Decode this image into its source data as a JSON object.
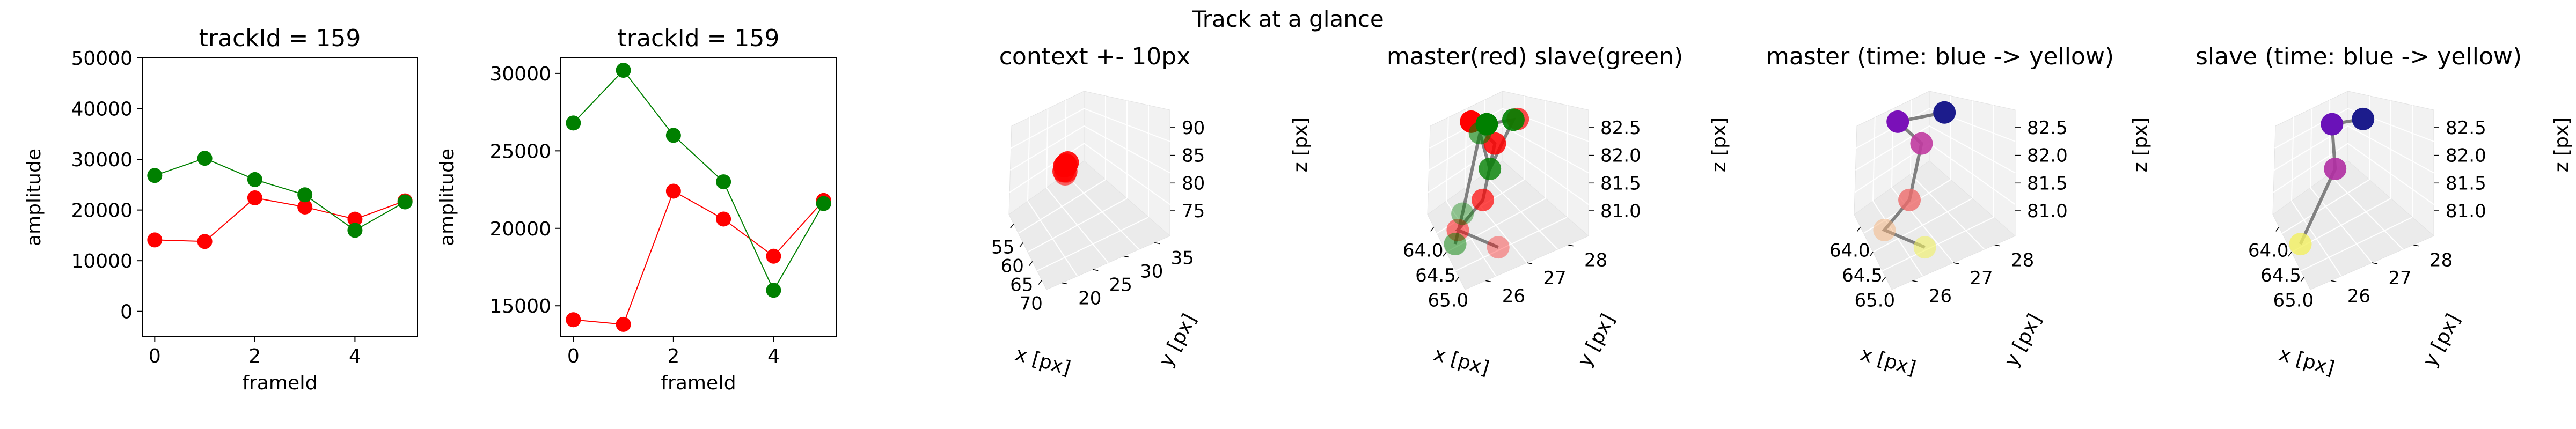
{
  "figure": {
    "suptitle": "Track at a glance"
  },
  "colors": {
    "master": "#ff0000",
    "slave": "#008000",
    "line3d": "#808080"
  },
  "chart_data": [
    {
      "type": "line",
      "title": "trackId = 159",
      "xlabel": "frameId",
      "ylabel": "amplitude",
      "xlim": [
        -0.25,
        5.25
      ],
      "ylim": [
        -5000,
        50000
      ],
      "xticks": [
        "0",
        "2",
        "4"
      ],
      "xtick_values": [
        0,
        2,
        4
      ],
      "yticks": [
        "0",
        "10000",
        "20000",
        "30000",
        "40000",
        "50000"
      ],
      "ytick_values": [
        0,
        10000,
        20000,
        30000,
        40000,
        50000
      ],
      "x": [
        0,
        1,
        2,
        3,
        4,
        5
      ],
      "series": [
        {
          "color": "#ff0000",
          "values": [
            14100,
            13800,
            22400,
            20600,
            18200,
            21800
          ]
        },
        {
          "color": "#008000",
          "values": [
            26800,
            30200,
            26000,
            23000,
            16000,
            21600
          ]
        }
      ]
    },
    {
      "type": "line",
      "title": "trackId = 159",
      "xlabel": "frameId",
      "ylabel": "amplitude",
      "xlim": [
        -0.25,
        5.25
      ],
      "ylim": [
        13000,
        31000
      ],
      "xticks": [
        "0",
        "2",
        "4"
      ],
      "xtick_values": [
        0,
        2,
        4
      ],
      "yticks": [
        "15000",
        "20000",
        "25000",
        "30000"
      ],
      "ytick_values": [
        15000,
        20000,
        25000,
        30000
      ],
      "x": [
        0,
        1,
        2,
        3,
        4,
        5
      ],
      "series": [
        {
          "color": "#ff0000",
          "values": [
            14100,
            13800,
            22400,
            20600,
            18200,
            21800
          ]
        },
        {
          "color": "#008000",
          "values": [
            26800,
            30200,
            26000,
            23000,
            16000,
            21600
          ]
        }
      ]
    },
    {
      "type": "scatter",
      "title": "context +- 10px",
      "xlabel": "x [px]",
      "ylabel": "y [px]",
      "zlabel": "z [px]",
      "xticks": [
        "55",
        "60",
        "65",
        "70"
      ],
      "yticks": [
        "20",
        "25",
        "30",
        "35"
      ],
      "zticks": [
        "75",
        "80",
        "85",
        "90"
      ],
      "xlim": [
        53,
        75
      ],
      "ylim": [
        17,
        37
      ],
      "zlim": [
        71,
        93
      ],
      "points": [
        {
          "x": 64.3,
          "y": 26.6,
          "z": 81.9,
          "color": "#ff0000",
          "alpha": 0.9
        },
        {
          "x": 64.5,
          "y": 27.4,
          "z": 82.3,
          "color": "#ff0000",
          "alpha": 0.9
        },
        {
          "x": 64.8,
          "y": 26.2,
          "z": 81.5,
          "color": "#ff0000",
          "alpha": 0.8
        },
        {
          "x": 65.0,
          "y": 26.8,
          "z": 81.3,
          "color": "#ff0000",
          "alpha": 0.7
        },
        {
          "x": 64.6,
          "y": 27.0,
          "z": 82.0,
          "color": "#ff0000",
          "alpha": 0.9
        },
        {
          "x": 65.2,
          "y": 26.4,
          "z": 81.1,
          "color": "#ff0000",
          "alpha": 0.6
        },
        {
          "x": 64.4,
          "y": 26.9,
          "z": 82.1,
          "color": "#ff0000",
          "alpha": 0.9
        }
      ],
      "lines": []
    },
    {
      "type": "scatter",
      "title": "master(red) slave(green)",
      "xlabel": "x [px]",
      "ylabel": "y [px]",
      "zlabel": "z [px]",
      "xticks": [
        "64.0",
        "64.5",
        "65.0"
      ],
      "yticks": [
        "26",
        "27",
        "28"
      ],
      "zticks": [
        "81.0",
        "81.5",
        "82.0",
        "82.5"
      ],
      "xlim": [
        63.6,
        65.4
      ],
      "ylim": [
        25.4,
        28.6
      ],
      "zlim": [
        80.8,
        82.7
      ],
      "points": [
        {
          "x": 64.0,
          "y": 26.9,
          "z": 82.1,
          "color": "#ff0000",
          "alpha": 1.0
        },
        {
          "x": 64.8,
          "y": 27.2,
          "z": 82.2,
          "color": "#ff0000",
          "alpha": 0.85
        },
        {
          "x": 64.9,
          "y": 26.6,
          "z": 81.55,
          "color": "#ff0000",
          "alpha": 0.7
        },
        {
          "x": 65.0,
          "y": 28.0,
          "z": 82.5,
          "color": "#ff0000",
          "alpha": 0.7
        },
        {
          "x": 64.6,
          "y": 25.8,
          "z": 81.1,
          "color": "#ff0000",
          "alpha": 0.5
        },
        {
          "x": 65.3,
          "y": 26.9,
          "z": 81.0,
          "color": "#ff0000",
          "alpha": 0.35
        },
        {
          "x": 64.3,
          "y": 27.3,
          "z": 82.15,
          "color": "#008000",
          "alpha": 1.0
        },
        {
          "x": 64.9,
          "y": 27.9,
          "z": 82.45,
          "color": "#008000",
          "alpha": 0.9
        },
        {
          "x": 64.9,
          "y": 26.9,
          "z": 81.95,
          "color": "#008000",
          "alpha": 0.8
        },
        {
          "x": 64.2,
          "y": 27.1,
          "z": 82.0,
          "color": "#008000",
          "alpha": 0.6
        },
        {
          "x": 64.7,
          "y": 25.6,
          "z": 81.0,
          "color": "#008000",
          "alpha": 0.5
        },
        {
          "x": 64.6,
          "y": 26.0,
          "z": 81.3,
          "color": "#008000",
          "alpha": 0.4
        }
      ],
      "lines": [
        [
          [
            64.0,
            26.9,
            82.1
          ],
          [
            64.8,
            27.2,
            82.2
          ],
          [
            64.9,
            26.6,
            81.55
          ],
          [
            64.6,
            25.8,
            81.1
          ],
          [
            65.3,
            26.9,
            81.0
          ]
        ],
        [
          [
            64.3,
            27.3,
            82.15
          ],
          [
            64.9,
            27.9,
            82.45
          ],
          [
            64.9,
            26.9,
            81.95
          ],
          [
            64.2,
            27.1,
            82.0
          ],
          [
            64.6,
            26.0,
            81.3
          ],
          [
            64.7,
            25.6,
            81.0
          ]
        ]
      ]
    },
    {
      "type": "scatter",
      "title": "master (time: blue -> yellow)",
      "xlabel": "x [px]",
      "ylabel": "y [px]",
      "zlabel": "z [px]",
      "xticks": [
        "64.0",
        "64.5",
        "65.0"
      ],
      "yticks": [
        "26",
        "27",
        "28"
      ],
      "zticks": [
        "81.0",
        "81.5",
        "82.0",
        "82.5"
      ],
      "xlim": [
        63.6,
        65.4
      ],
      "ylim": [
        25.4,
        28.6
      ],
      "zlim": [
        80.8,
        82.7
      ],
      "points": [
        {
          "x": 65.0,
          "y": 28.0,
          "z": 82.6,
          "color": "#1c1c8c",
          "alpha": 1.0
        },
        {
          "x": 64.0,
          "y": 26.9,
          "z": 82.1,
          "color": "#7a10b8",
          "alpha": 1.0
        },
        {
          "x": 64.8,
          "y": 27.2,
          "z": 82.2,
          "color": "#c03aa0",
          "alpha": 0.9
        },
        {
          "x": 64.9,
          "y": 26.6,
          "z": 81.55,
          "color": "#ee6a6a",
          "alpha": 0.8
        },
        {
          "x": 64.6,
          "y": 25.8,
          "z": 81.1,
          "color": "#f6b27a",
          "alpha": 0.5
        },
        {
          "x": 65.3,
          "y": 26.9,
          "z": 81.0,
          "color": "#f0f060",
          "alpha": 0.6
        }
      ],
      "lines": [
        [
          [
            65.0,
            28.0,
            82.6
          ],
          [
            64.0,
            26.9,
            82.1
          ],
          [
            64.8,
            27.2,
            82.2
          ],
          [
            64.9,
            26.6,
            81.55
          ],
          [
            64.6,
            25.8,
            81.1
          ],
          [
            65.3,
            26.9,
            81.0
          ]
        ]
      ]
    },
    {
      "type": "scatter",
      "title": "slave (time: blue -> yellow)",
      "xlabel": "x [px]",
      "ylabel": "y [px]",
      "zlabel": "z [px]",
      "xticks": [
        "64.0",
        "64.5",
        "65.0"
      ],
      "yticks": [
        "26",
        "27",
        "28"
      ],
      "zticks": [
        "81.0",
        "81.5",
        "82.0",
        "82.5"
      ],
      "xlim": [
        63.6,
        65.4
      ],
      "ylim": [
        25.4,
        28.6
      ],
      "zlim": [
        80.8,
        82.7
      ],
      "points": [
        {
          "x": 65.0,
          "y": 28.0,
          "z": 82.5,
          "color": "#1c1c8c",
          "alpha": 1.0
        },
        {
          "x": 64.3,
          "y": 27.3,
          "z": 82.15,
          "color": "#6a12b8",
          "alpha": 1.0
        },
        {
          "x": 64.9,
          "y": 26.9,
          "z": 81.95,
          "color": "#b02ea2",
          "alpha": 0.9
        },
        {
          "x": 64.7,
          "y": 25.6,
          "z": 81.0,
          "color": "#f2f060",
          "alpha": 0.8
        }
      ],
      "lines": [
        [
          [
            65.0,
            28.0,
            82.5
          ],
          [
            64.3,
            27.3,
            82.15
          ],
          [
            64.9,
            26.9,
            81.95
          ],
          [
            64.7,
            25.6,
            81.0
          ]
        ]
      ]
    }
  ]
}
